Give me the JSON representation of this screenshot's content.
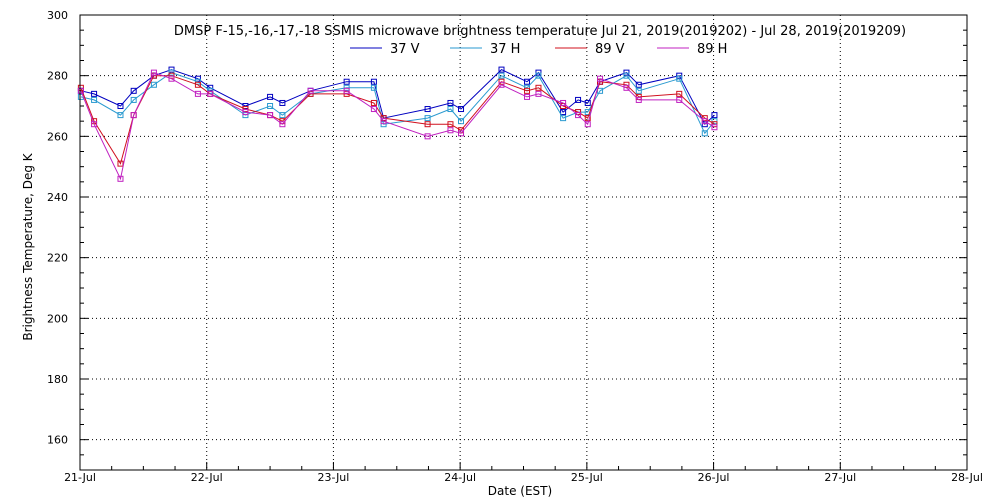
{
  "chart_data": {
    "type": "line",
    "title": "DMSP F-15,-16,-17,-18 SSMIS microwave brightness temperature Jul 21, 2019(2019202) - Jul 28, 2019(2019209)",
    "xlabel": "Date (EST)",
    "ylabel": "Brightness Temperature, Deg K",
    "xlim": [
      "2019-07-21",
      "2019-07-28"
    ],
    "ylim": [
      150,
      300
    ],
    "x_tick_labels": [
      "21-Jul",
      "22-Jul",
      "23-Jul",
      "24-Jul",
      "25-Jul",
      "26-Jul",
      "27-Jul",
      "28-Jul"
    ],
    "y_ticks": [
      160,
      180,
      200,
      220,
      240,
      260,
      280,
      300
    ],
    "grid": true,
    "legend_position": "top",
    "marker": "square",
    "x": [
      "2019-07-21 00:10",
      "2019-07-21 02:40",
      "2019-07-21 07:40",
      "2019-07-21 10:10",
      "2019-07-21 14:00",
      "2019-07-21 17:20",
      "2019-07-21 22:20",
      "2019-07-22 00:40",
      "2019-07-22 07:20",
      "2019-07-22 12:00",
      "2019-07-22 14:20",
      "2019-07-22 19:40",
      "2019-07-23 02:30",
      "2019-07-23 07:40",
      "2019-07-23 09:30",
      "2019-07-23 17:50",
      "2019-07-23 22:10",
      "2019-07-24 00:10",
      "2019-07-24 07:50",
      "2019-07-24 12:40",
      "2019-07-24 14:50",
      "2019-07-24 19:30",
      "2019-07-24 22:20",
      "2019-07-25 00:10",
      "2019-07-25 02:30",
      "2019-07-25 07:30",
      "2019-07-25 09:50",
      "2019-07-25 17:30",
      "2019-07-25 22:20",
      "2019-07-26 00:10"
    ],
    "series": [
      {
        "name": "37 V",
        "color": "#0000c0",
        "values": [
          275,
          274,
          270,
          275,
          280,
          282,
          279,
          276,
          270,
          273,
          271,
          275,
          278,
          278,
          266,
          269,
          271,
          269,
          282,
          278,
          281,
          268,
          272,
          271,
          278,
          281,
          277,
          280,
          264,
          267
        ]
      },
      {
        "name": "37 H",
        "color": "#2a9ad0",
        "values": [
          273,
          272,
          267,
          272,
          277,
          281,
          278,
          275,
          267,
          270,
          267,
          274,
          276,
          276,
          264,
          266,
          269,
          265,
          280,
          276,
          280,
          266,
          268,
          268,
          275,
          280,
          275,
          279,
          261,
          265
        ]
      },
      {
        "name": "89 V",
        "color": "#d0101e",
        "values": [
          276,
          265,
          251,
          267,
          280,
          280,
          277,
          274,
          269,
          267,
          265,
          274,
          274,
          271,
          266,
          264,
          264,
          262,
          278,
          275,
          276,
          270,
          268,
          266,
          278,
          277,
          273,
          274,
          266,
          264
        ]
      },
      {
        "name": "89 H",
        "color": "#c020c0",
        "values": [
          275,
          264,
          246,
          267,
          281,
          279,
          274,
          274,
          268,
          267,
          264,
          275,
          275,
          269,
          265,
          260,
          262,
          261,
          277,
          273,
          274,
          271,
          267,
          264,
          279,
          276,
          272,
          272,
          265,
          263
        ]
      }
    ],
    "series_extra_note": ""
  }
}
